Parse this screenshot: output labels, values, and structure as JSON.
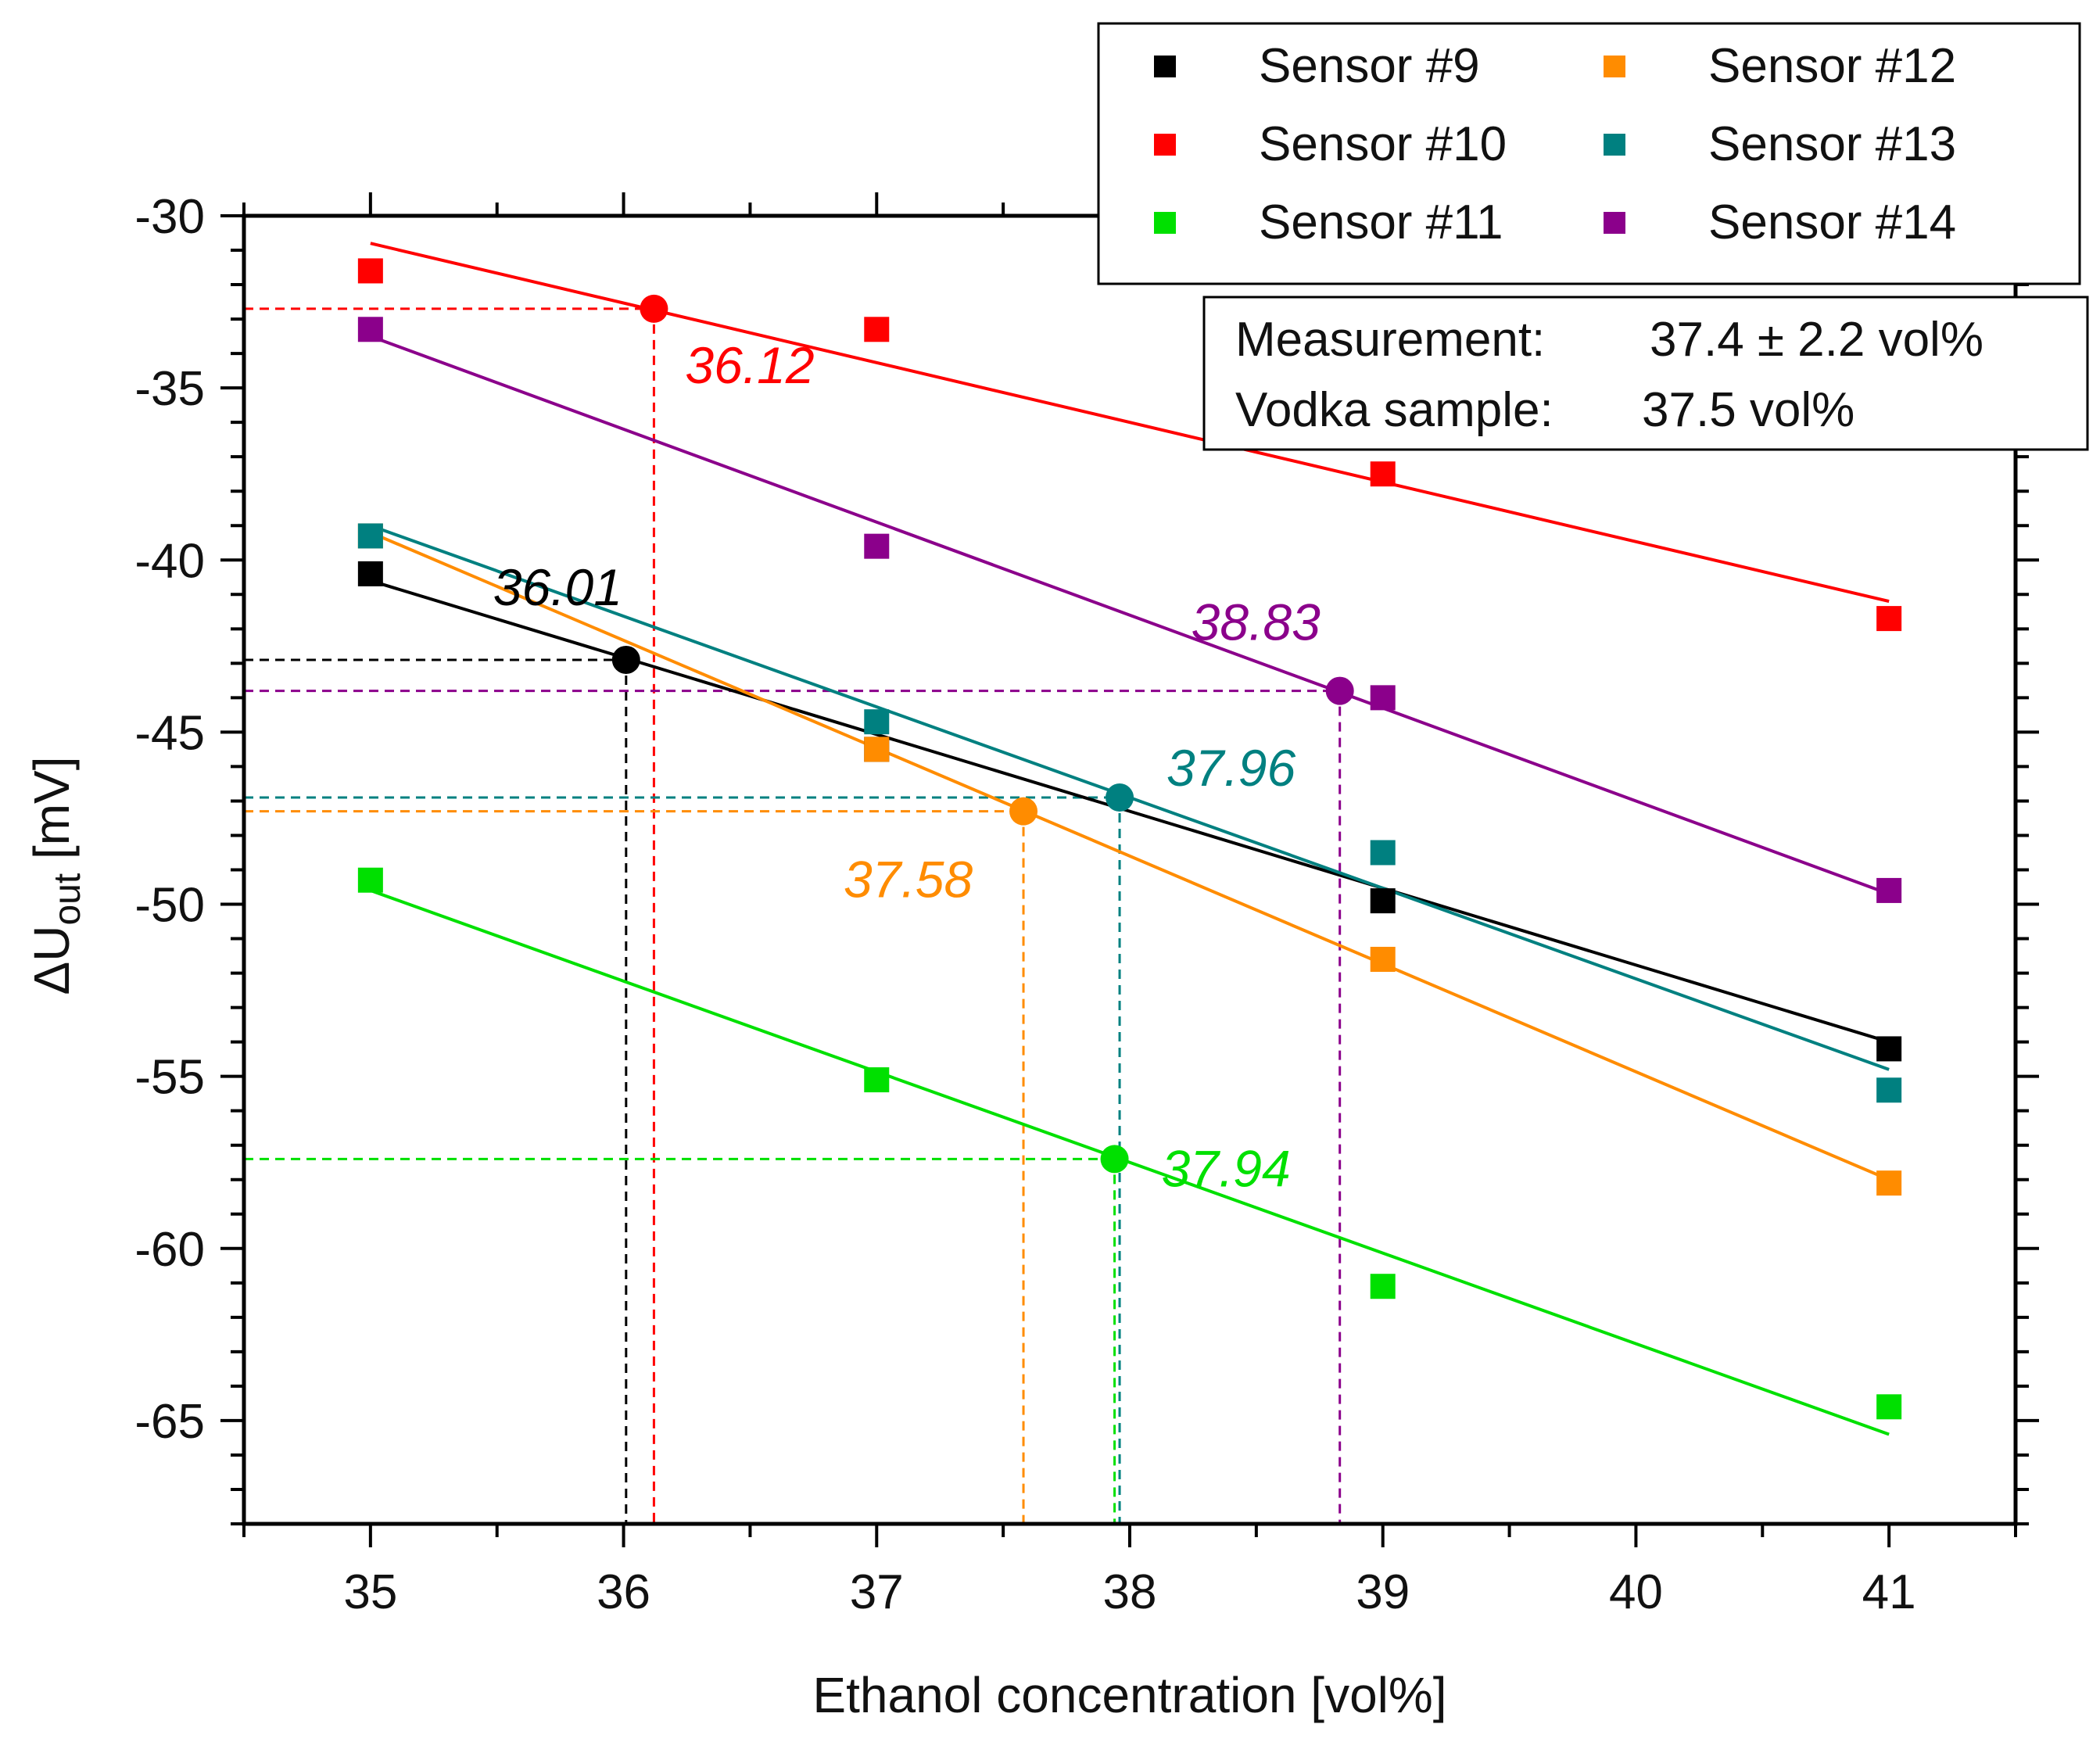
{
  "chart_data": {
    "type": "scatter",
    "xlabel": "Ethanol concentration [vol%]",
    "ylabel_main": "ΔU",
    "ylabel_sub": "out",
    "ylabel_unit": " [mV]",
    "xlim": [
      34.5,
      41.5
    ],
    "ylim": [
      -68,
      -30
    ],
    "xticks": [
      35,
      36,
      37,
      38,
      39,
      40,
      41
    ],
    "yticks": [
      -30,
      -35,
      -40,
      -45,
      -50,
      -55,
      -60,
      -65
    ],
    "series": [
      {
        "name": "Sensor #9",
        "color": "#000000",
        "x": [
          35,
          37,
          39,
          41
        ],
        "y": [
          -40.4,
          -45.5,
          -49.9,
          -54.2
        ],
        "fit": [
          [
            35,
            -40.6
          ],
          [
            41,
            -54.0
          ]
        ],
        "estimate": {
          "x": 36.01,
          "y": -42.9,
          "label": "36.01"
        }
      },
      {
        "name": "Sensor #10",
        "color": "#ff0000",
        "x": [
          35,
          37,
          39,
          41
        ],
        "y": [
          -31.6,
          -33.3,
          -37.5,
          -41.7
        ],
        "fit": [
          [
            35,
            -30.8
          ],
          [
            41,
            -41.2
          ]
        ],
        "estimate": {
          "x": 36.12,
          "y": -32.7,
          "label": "36.12"
        }
      },
      {
        "name": "Sensor #11",
        "color": "#00e000",
        "x": [
          35,
          37,
          39,
          41
        ],
        "y": [
          -49.3,
          -55.1,
          -61.1,
          -64.6
        ],
        "fit": [
          [
            35,
            -49.6
          ],
          [
            41,
            -65.4
          ]
        ],
        "estimate": {
          "x": 37.94,
          "y": -57.4,
          "label": "37.94"
        }
      },
      {
        "name": "Sensor #12",
        "color": "#ff8c00",
        "x": [
          35,
          37,
          39,
          41
        ],
        "y": [
          -39.3,
          -45.5,
          -51.6,
          -58.1
        ],
        "fit": [
          [
            35,
            -39.2
          ],
          [
            41,
            -58.0
          ]
        ],
        "estimate": {
          "x": 37.58,
          "y": -47.3,
          "label": "37.58"
        }
      },
      {
        "name": "Sensor #13",
        "color": "#008080",
        "x": [
          35,
          37,
          39,
          41
        ],
        "y": [
          -39.3,
          -44.7,
          -48.5,
          -55.4
        ],
        "fit": [
          [
            35,
            -39.0
          ],
          [
            41,
            -54.8
          ]
        ],
        "estimate": {
          "x": 37.96,
          "y": -46.9,
          "label": "37.96"
        }
      },
      {
        "name": "Sensor #14",
        "color": "#8b008b",
        "x": [
          35,
          37,
          39,
          41
        ],
        "y": [
          -33.3,
          -39.6,
          -44.0,
          -49.6
        ],
        "fit": [
          [
            35,
            -33.5
          ],
          [
            41,
            -49.7
          ]
        ],
        "estimate": {
          "x": 38.83,
          "y": -43.8,
          "label": "38.83"
        }
      }
    ],
    "info_box": {
      "measurement_label": "Measurement:",
      "measurement_value": "37.4 ± 2.2 vol%",
      "sample_label": "Vodka sample:",
      "sample_value": "37.5 vol%"
    },
    "legend_position": "top-right"
  }
}
